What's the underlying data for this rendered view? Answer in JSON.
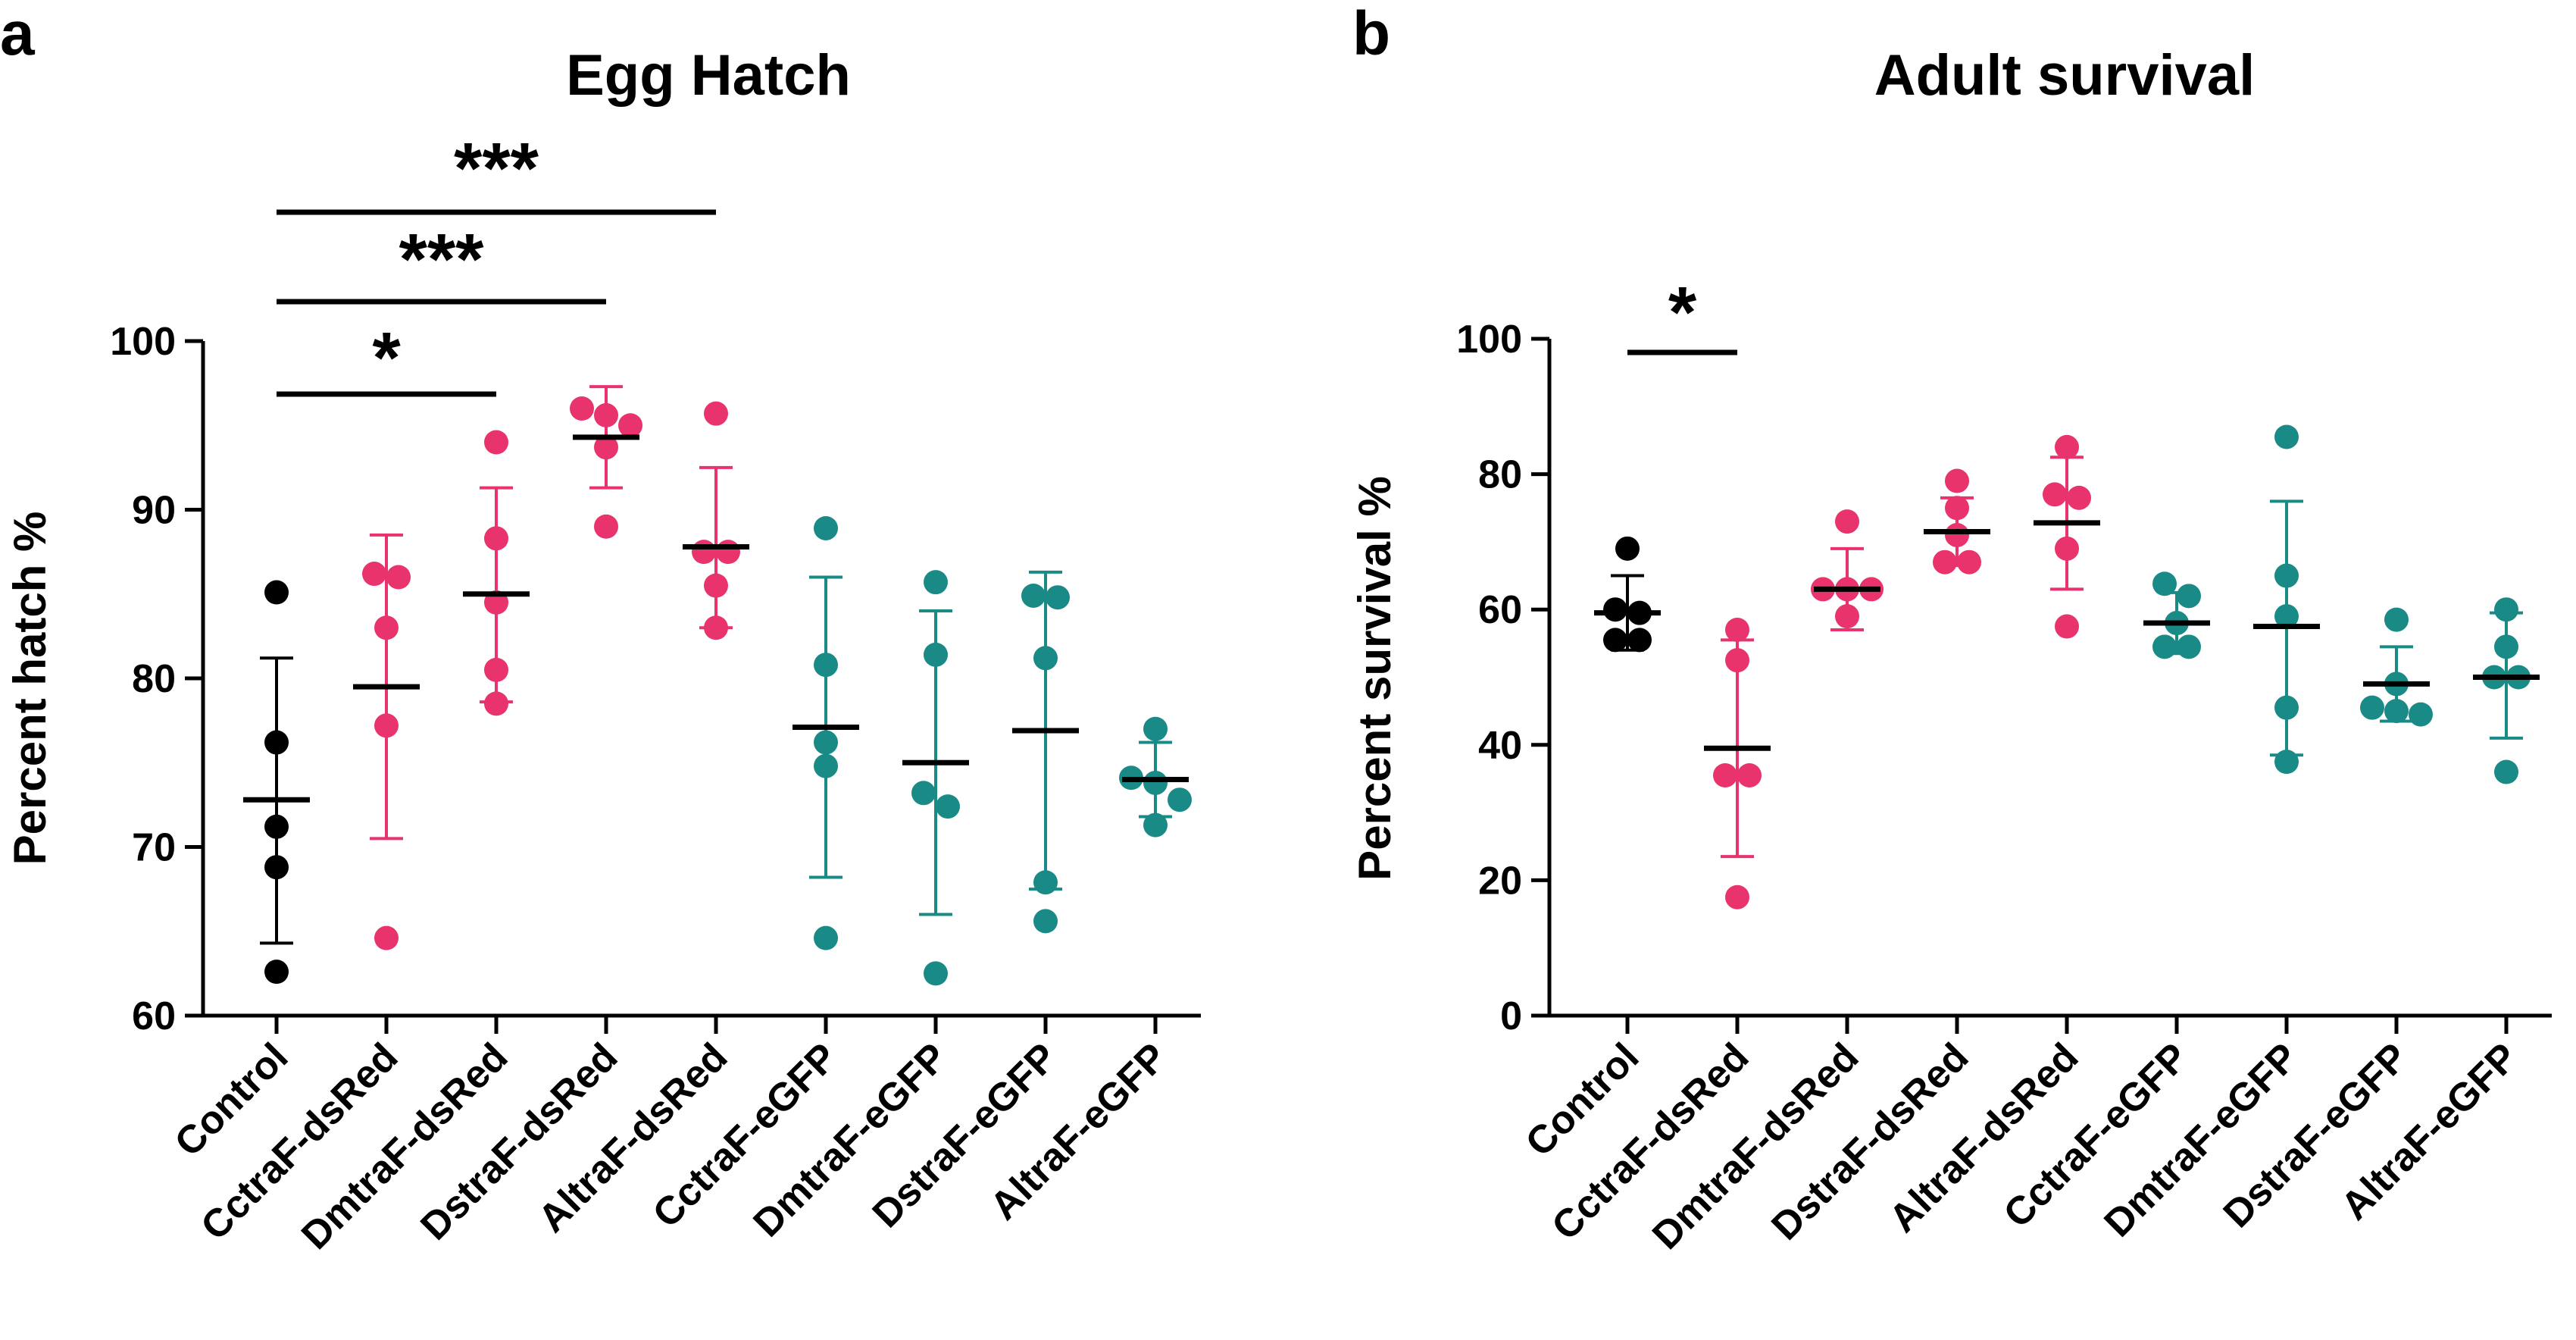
{
  "colors": {
    "control": "#000000",
    "dsRed": "#e8336d",
    "eGFP": "#1a8a86"
  },
  "chart_data": [
    {
      "panel": "a",
      "type": "scatter",
      "title": "Egg Hatch",
      "xlabel": "",
      "ylabel": "Percent hatch %",
      "ylim": [
        60,
        100
      ],
      "yticks": [
        60,
        70,
        80,
        90,
        100
      ],
      "categories": [
        "Control",
        "CctraF-dsRed",
        "DmtraF-dsRed",
        "DstraF-dsRed",
        "AltraF-dsRed",
        "CctraF-eGFP",
        "DmtraF-eGFP",
        "DstraF-eGFP",
        "AltraF-eGFP"
      ],
      "groups": [
        {
          "name": "Control",
          "color_key": "control",
          "points": [
            85.1,
            76.2,
            71.2,
            68.8,
            62.6
          ],
          "mean": 72.8,
          "sd_low": 64.3,
          "sd_high": 81.2
        },
        {
          "name": "CctraF-dsRed",
          "color_key": "dsRed",
          "points": [
            86.2,
            86.0,
            83.0,
            77.2,
            64.6
          ],
          "mean": 79.5,
          "sd_low": 70.5,
          "sd_high": 88.5
        },
        {
          "name": "DmtraF-dsRed",
          "color_key": "dsRed",
          "points": [
            94.0,
            88.3,
            84.5,
            80.5,
            78.5
          ],
          "mean": 85.0,
          "sd_low": 78.6,
          "sd_high": 91.3
        },
        {
          "name": "DstraF-dsRed",
          "color_key": "dsRed",
          "points": [
            96.0,
            95.6,
            95.0,
            93.7,
            89.0
          ],
          "mean": 94.3,
          "sd_low": 91.3,
          "sd_high": 97.3
        },
        {
          "name": "AltraF-dsRed",
          "color_key": "dsRed",
          "points": [
            95.7,
            87.5,
            87.5,
            85.5,
            83.0
          ],
          "mean": 87.8,
          "sd_low": 83.0,
          "sd_high": 92.5
        },
        {
          "name": "CctraF-eGFP",
          "color_key": "eGFP",
          "points": [
            88.9,
            80.8,
            76.2,
            74.8,
            64.6
          ],
          "mean": 77.1,
          "sd_low": 68.2,
          "sd_high": 86.0
        },
        {
          "name": "DmtraF-eGFP",
          "color_key": "eGFP",
          "points": [
            85.7,
            81.4,
            73.2,
            72.4,
            62.5
          ],
          "mean": 75.0,
          "sd_low": 66.0,
          "sd_high": 84.0
        },
        {
          "name": "DstraF-eGFP",
          "color_key": "eGFP",
          "points": [
            84.9,
            84.8,
            81.2,
            67.9,
            65.6
          ],
          "mean": 76.9,
          "sd_low": 67.5,
          "sd_high": 86.3
        },
        {
          "name": "AltraF-eGFP",
          "color_key": "eGFP",
          "points": [
            77.0,
            74.1,
            73.8,
            72.8,
            71.3
          ],
          "mean": 74.0,
          "sd_low": 71.8,
          "sd_high": 76.2
        }
      ],
      "significance": [
        {
          "from": "Control",
          "to": "DmtraF-dsRed",
          "label": "*"
        },
        {
          "from": "Control",
          "to": "DstraF-dsRed",
          "label": "***"
        },
        {
          "from": "Control",
          "to": "AltraF-dsRed",
          "label": "***"
        }
      ]
    },
    {
      "panel": "b",
      "type": "scatter",
      "title": "Adult survival",
      "xlabel": "",
      "ylabel": "Percent survival %",
      "ylim": [
        0,
        100
      ],
      "yticks": [
        0,
        20,
        40,
        60,
        80,
        100
      ],
      "categories": [
        "Control",
        "CctraF-dsRed",
        "DmtraF-dsRed",
        "DstraF-dsRed",
        "AltraF-dsRed",
        "CctraF-eGFP",
        "DmtraF-eGFP",
        "DstraF-eGFP",
        "AltraF-eGFP"
      ],
      "groups": [
        {
          "name": "Control",
          "color_key": "control",
          "points": [
            69.0,
            60.0,
            59.5,
            55.5,
            55.5
          ],
          "mean": 59.5,
          "sd_low": 54.0,
          "sd_high": 65.0
        },
        {
          "name": "CctraF-dsRed",
          "color_key": "dsRed",
          "points": [
            57.0,
            52.5,
            35.5,
            35.5,
            17.5
          ],
          "mean": 39.5,
          "sd_low": 23.5,
          "sd_high": 55.5
        },
        {
          "name": "DmtraF-dsRed",
          "color_key": "dsRed",
          "points": [
            73.0,
            63.0,
            63.0,
            63.0,
            59.0
          ],
          "mean": 63.0,
          "sd_low": 57.0,
          "sd_high": 69.0
        },
        {
          "name": "DstraF-dsRed",
          "color_key": "dsRed",
          "points": [
            79.0,
            75.0,
            71.0,
            67.0,
            67.0
          ],
          "mean": 71.5,
          "sd_low": 66.5,
          "sd_high": 76.5
        },
        {
          "name": "AltraF-dsRed",
          "color_key": "dsRed",
          "points": [
            84.0,
            77.0,
            76.5,
            69.0,
            57.5
          ],
          "mean": 72.8,
          "sd_low": 63.0,
          "sd_high": 82.5
        },
        {
          "name": "CctraF-eGFP",
          "color_key": "eGFP",
          "points": [
            63.8,
            62.0,
            58.0,
            54.5,
            54.5
          ],
          "mean": 58.0,
          "sd_low": 53.5,
          "sd_high": 62.5
        },
        {
          "name": "DmtraF-eGFP",
          "color_key": "eGFP",
          "points": [
            85.5,
            65.0,
            59.0,
            45.5,
            37.5
          ],
          "mean": 57.5,
          "sd_low": 38.5,
          "sd_high": 76.0
        },
        {
          "name": "DstraF-eGFP",
          "color_key": "eGFP",
          "points": [
            58.5,
            49.0,
            45.5,
            45.0,
            44.5
          ],
          "mean": 49.0,
          "sd_low": 43.5,
          "sd_high": 54.5
        },
        {
          "name": "AltraF-eGFP",
          "color_key": "eGFP",
          "points": [
            60.0,
            54.5,
            50.0,
            50.0,
            36.0
          ],
          "mean": 50.0,
          "sd_low": 41.0,
          "sd_high": 59.5
        }
      ],
      "significance": [
        {
          "from": "Control",
          "to": "CctraF-dsRed",
          "label": "*"
        }
      ]
    }
  ]
}
